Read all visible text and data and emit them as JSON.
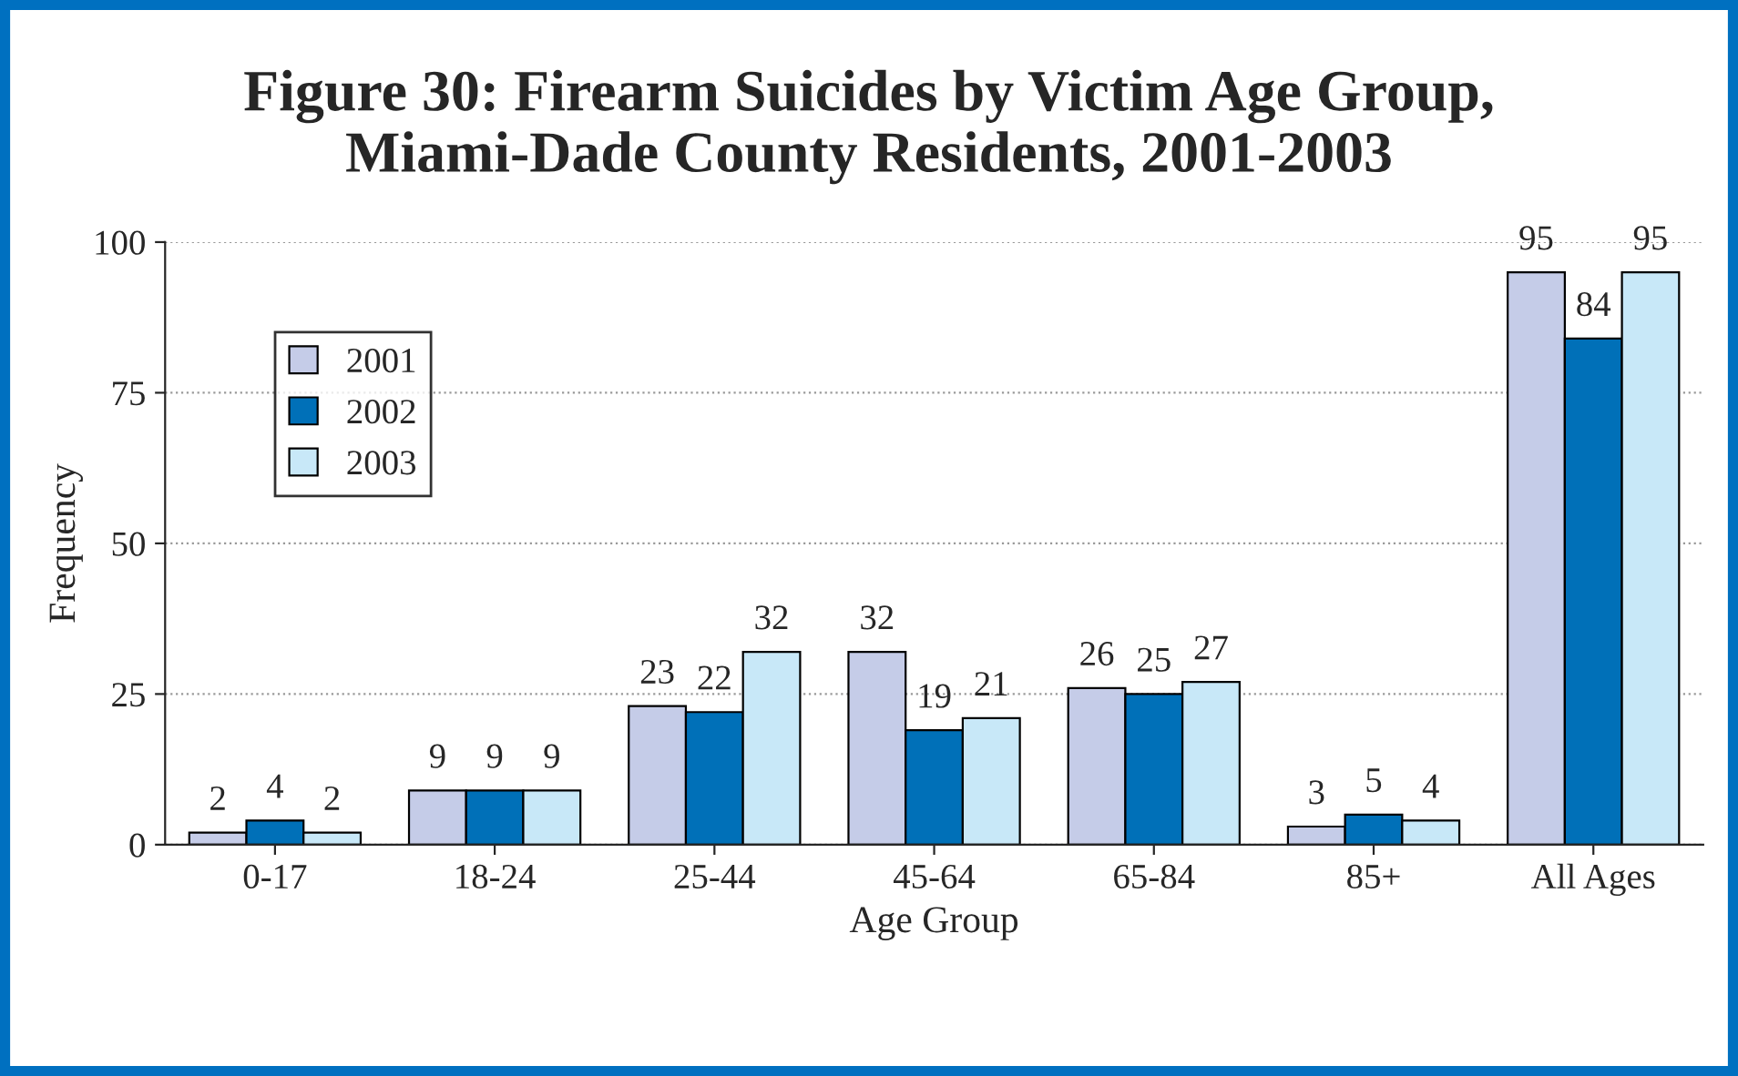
{
  "chart_data": {
    "type": "bar",
    "title": "Figure 30: Firearm Suicides by Victim Age Group,\nMiami-Dade County Residents, 2001-2003",
    "xlabel": "Age Group",
    "ylabel": "Frequency",
    "categories": [
      "0-17",
      "18-24",
      "25-44",
      "45-64",
      "65-84",
      "85+",
      "All Ages"
    ],
    "series": [
      {
        "name": "2001",
        "color": "#c5cce8",
        "values": [
          2,
          9,
          23,
          32,
          26,
          3,
          95
        ]
      },
      {
        "name": "2002",
        "color": "#0070b8",
        "values": [
          4,
          9,
          22,
          19,
          25,
          5,
          84
        ]
      },
      {
        "name": "2003",
        "color": "#c8e8f8",
        "values": [
          2,
          9,
          32,
          21,
          27,
          4,
          95
        ]
      }
    ],
    "ylim": [
      0,
      100
    ],
    "yticks": [
      0,
      25,
      50,
      75,
      100
    ],
    "grid": "y",
    "legend": "top left",
    "data_labels": true
  }
}
